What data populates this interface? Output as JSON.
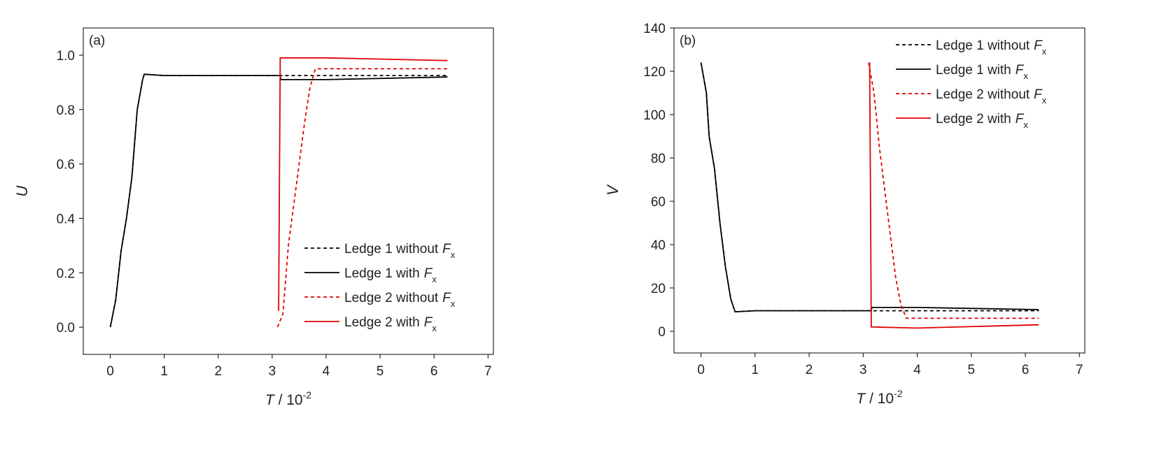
{
  "chart_data": [
    {
      "type": "line",
      "label": "(a)",
      "ylabel": "U",
      "xlabel": "T",
      "xlabel_unit": " / 10",
      "xlabel_exponent": "-2",
      "xlim": [
        -0.5,
        7.1
      ],
      "ylim": [
        -0.1,
        1.1
      ],
      "xticks": [
        0,
        1,
        2,
        3,
        4,
        5,
        6,
        7
      ],
      "yticks": [
        {
          "value": 0,
          "label": "0.0"
        },
        0.2,
        0.4,
        0.6,
        0.8,
        {
          "value": 1,
          "label": "1.0"
        }
      ],
      "legend": "lower right",
      "series": [
        {
          "name": "Ledge 1 without",
          "name_symbol": "F",
          "name_subscript": "x",
          "color": "#000000",
          "dash": true,
          "x": [
            0,
            0.1,
            0.2,
            0.3,
            0.4,
            0.5,
            0.6,
            0.63,
            1,
            3.1,
            6.25
          ],
          "values": [
            0,
            0.1,
            0.28,
            0.4,
            0.55,
            0.8,
            0.91,
            0.93,
            0.925,
            0.925,
            0.925
          ]
        },
        {
          "name": "Ledge 1 with",
          "name_symbol": "F",
          "name_subscript": "x",
          "color": "#000000",
          "dash": false,
          "x": [
            0,
            0.1,
            0.2,
            0.3,
            0.4,
            0.5,
            0.6,
            0.63,
            1,
            3.15,
            3.16,
            4,
            6.25
          ],
          "values": [
            0,
            0.1,
            0.28,
            0.4,
            0.55,
            0.8,
            0.91,
            0.93,
            0.925,
            0.925,
            0.91,
            0.91,
            0.92
          ]
        },
        {
          "name": "Ledge 2 without",
          "name_symbol": "F",
          "name_subscript": "x",
          "color": "#e00000",
          "dash": true,
          "x": [
            3.1,
            3.2,
            3.3,
            3.4,
            3.5,
            3.6,
            3.7,
            3.8,
            6.25
          ],
          "values": [
            0,
            0.05,
            0.3,
            0.45,
            0.6,
            0.75,
            0.88,
            0.95,
            0.95
          ]
        },
        {
          "name": "Ledge 2 with",
          "name_symbol": "F",
          "name_subscript": "x",
          "color": "#e00000",
          "dash": false,
          "x": [
            3.12,
            3.15,
            4,
            6.25
          ],
          "values": [
            0.06,
            0.99,
            0.99,
            0.98
          ]
        }
      ]
    },
    {
      "type": "line",
      "label": "(b)",
      "ylabel": "V",
      "xlabel": "T",
      "xlabel_unit": " / 10",
      "xlabel_exponent": "-2",
      "xlim": [
        -0.5,
        7.1
      ],
      "ylim": [
        -10,
        140
      ],
      "xticks": [
        0,
        1,
        2,
        3,
        4,
        5,
        6,
        7
      ],
      "yticks": [
        0,
        20,
        40,
        60,
        80,
        100,
        120,
        140
      ],
      "legend": "upper right",
      "series": [
        {
          "name": "Ledge 1 without",
          "name_symbol": "F",
          "name_subscript": "x",
          "color": "#000000",
          "dash": true,
          "x": [
            0,
            0.1,
            0.15,
            0.25,
            0.35,
            0.45,
            0.55,
            0.63,
            1,
            3.15,
            6.25
          ],
          "values": [
            124,
            110,
            90,
            75,
            50,
            30,
            15,
            9,
            9.5,
            9.5,
            9.5
          ]
        },
        {
          "name": "Ledge 1 with",
          "name_symbol": "F",
          "name_subscript": "x",
          "color": "#000000",
          "dash": false,
          "x": [
            0,
            0.1,
            0.15,
            0.25,
            0.35,
            0.45,
            0.55,
            0.63,
            1,
            3.15,
            3.16,
            4,
            6.25
          ],
          "values": [
            124,
            110,
            90,
            75,
            50,
            30,
            15,
            9,
            9.5,
            9.5,
            11,
            11,
            10
          ]
        },
        {
          "name": "Ledge 2 without",
          "name_symbol": "F",
          "name_subscript": "x",
          "color": "#e00000",
          "dash": true,
          "x": [
            3.1,
            3.2,
            3.3,
            3.4,
            3.5,
            3.6,
            3.7,
            3.8,
            6.25
          ],
          "values": [
            124,
            110,
            85,
            65,
            45,
            25,
            12,
            6,
            6
          ]
        },
        {
          "name": "Ledge 2 with",
          "name_symbol": "F",
          "name_subscript": "x",
          "color": "#e00000",
          "dash": false,
          "x": [
            3.12,
            3.15,
            4,
            6.25
          ],
          "values": [
            124,
            2,
            1.5,
            3
          ]
        }
      ]
    }
  ]
}
